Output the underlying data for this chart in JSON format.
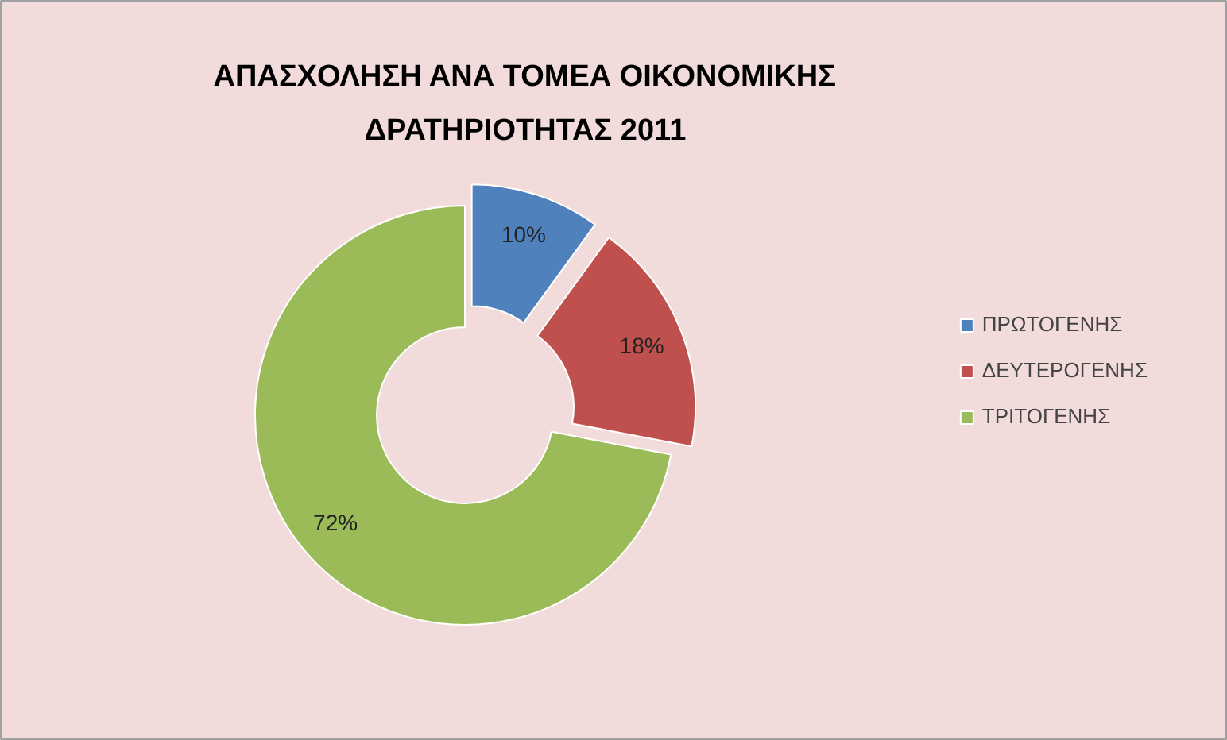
{
  "chart_data": {
    "type": "donut",
    "title": "ΑΠΑΣΧΟΛΗΣΗ ΑΝΑ ΤΟΜΕΑ ΟΙΚΟΝΟΜΙΚΗΣ\nΔΡΑΤΗΡΙΟΤΗΤΑΣ 2011",
    "categories": [
      "ΠΡΩΤΟΓΕΝΗΣ",
      "ΔΕΥΤΕΡΟΓΕΝΗΣ",
      "ΤΡΙΤΟΓΕΝΗΣ"
    ],
    "values": [
      10,
      18,
      72
    ],
    "colors": [
      "#4f81bd",
      "#c0504d",
      "#9bbb59"
    ],
    "value_labels": [
      "10%",
      "18%",
      "72%"
    ],
    "legend": "right"
  }
}
